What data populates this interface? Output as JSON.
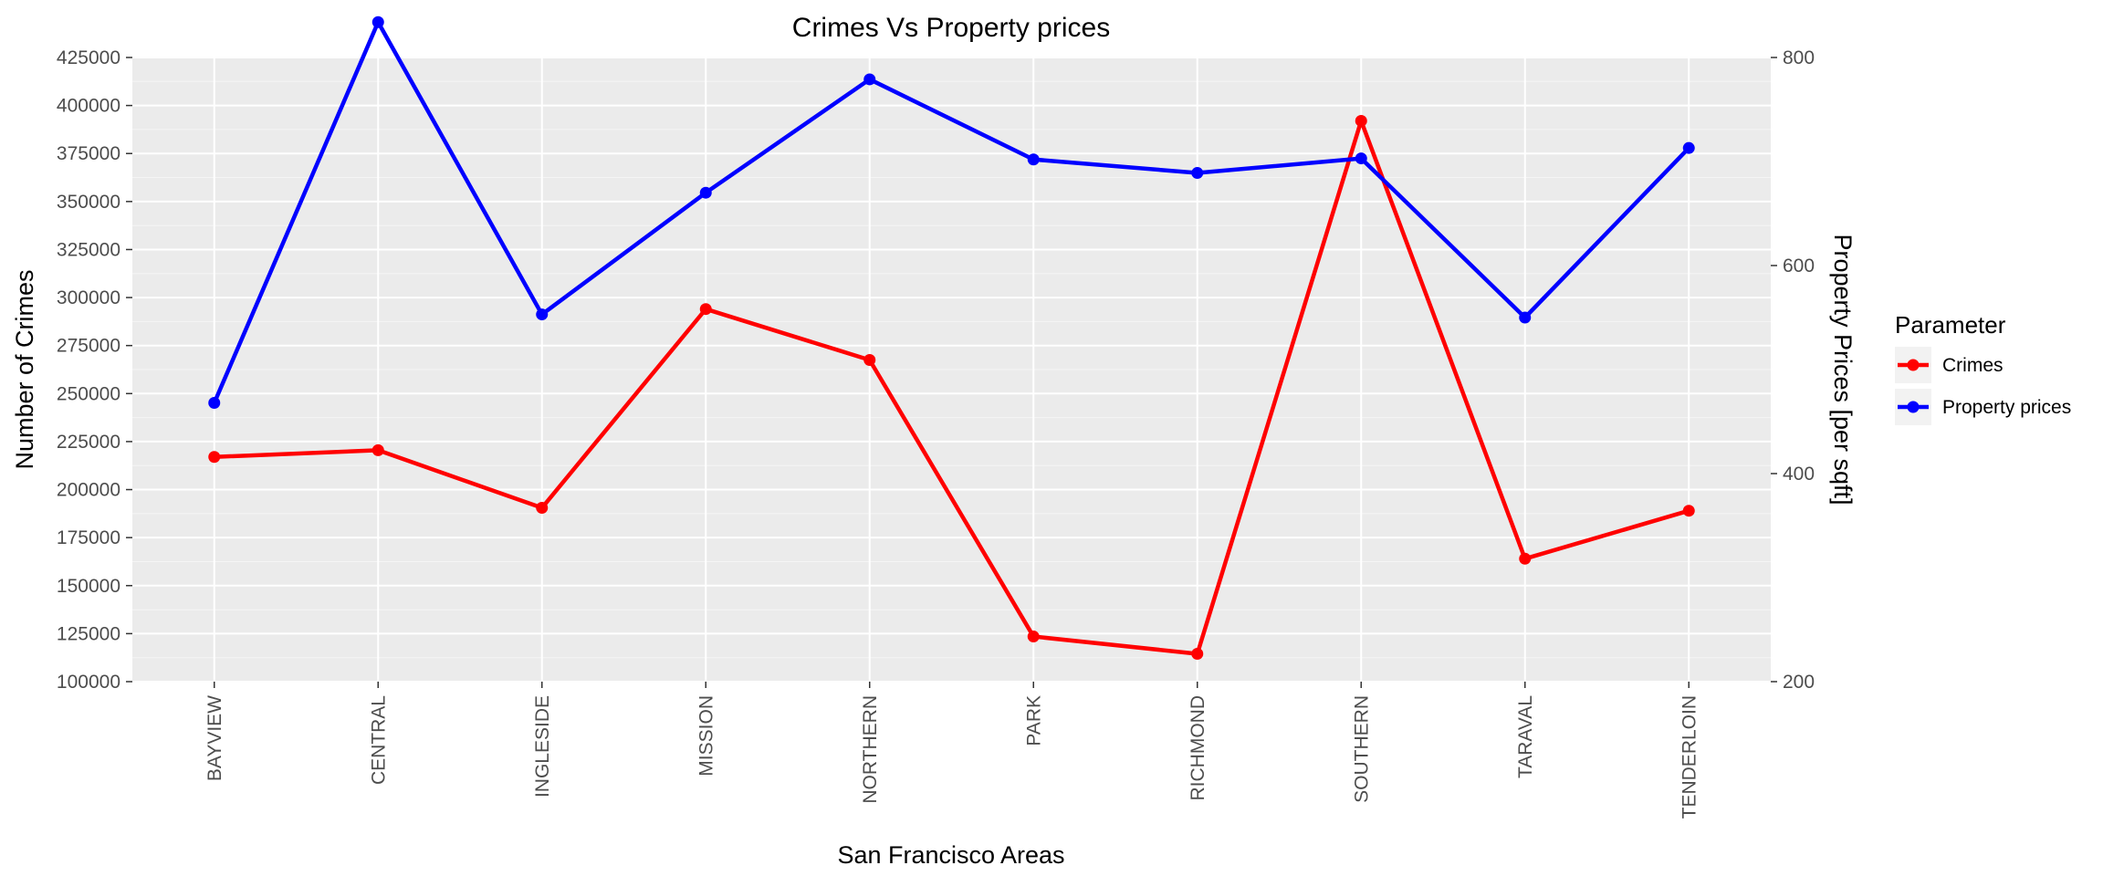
{
  "chart_data": {
    "type": "line",
    "title": "Crimes Vs Property prices",
    "xlabel": "San Francisco Areas",
    "ylabel": "Number of Crimes",
    "y2label": "Property Prices [per sqft]",
    "categories": [
      "BAYVIEW",
      "CENTRAL",
      "INGLESIDE",
      "MISSION",
      "NORTHERN",
      "PARK",
      "RICHMOND",
      "SOUTHERN",
      "TARAVAL",
      "TENDERLOIN"
    ],
    "ylim": [
      100000,
      425000
    ],
    "y2lim": [
      200,
      800
    ],
    "yticks": [
      100000,
      125000,
      150000,
      175000,
      200000,
      225000,
      250000,
      275000,
      300000,
      325000,
      350000,
      375000,
      400000,
      425000
    ],
    "y2ticks": [
      200,
      400,
      600,
      800
    ],
    "grid": true,
    "legend": {
      "title": "Parameter",
      "placement": "right"
    },
    "series": [
      {
        "name": "Crimes",
        "axis": "left",
        "color": "#ff0000",
        "values": [
          217000,
          220500,
          190500,
          294000,
          267500,
          123500,
          114500,
          392000,
          164000,
          189000
        ]
      },
      {
        "name": "Property prices",
        "axis": "right",
        "color": "#0000ff",
        "values": [
          468,
          834,
          553,
          670,
          779,
          702,
          689,
          703,
          550,
          713
        ]
      }
    ]
  }
}
